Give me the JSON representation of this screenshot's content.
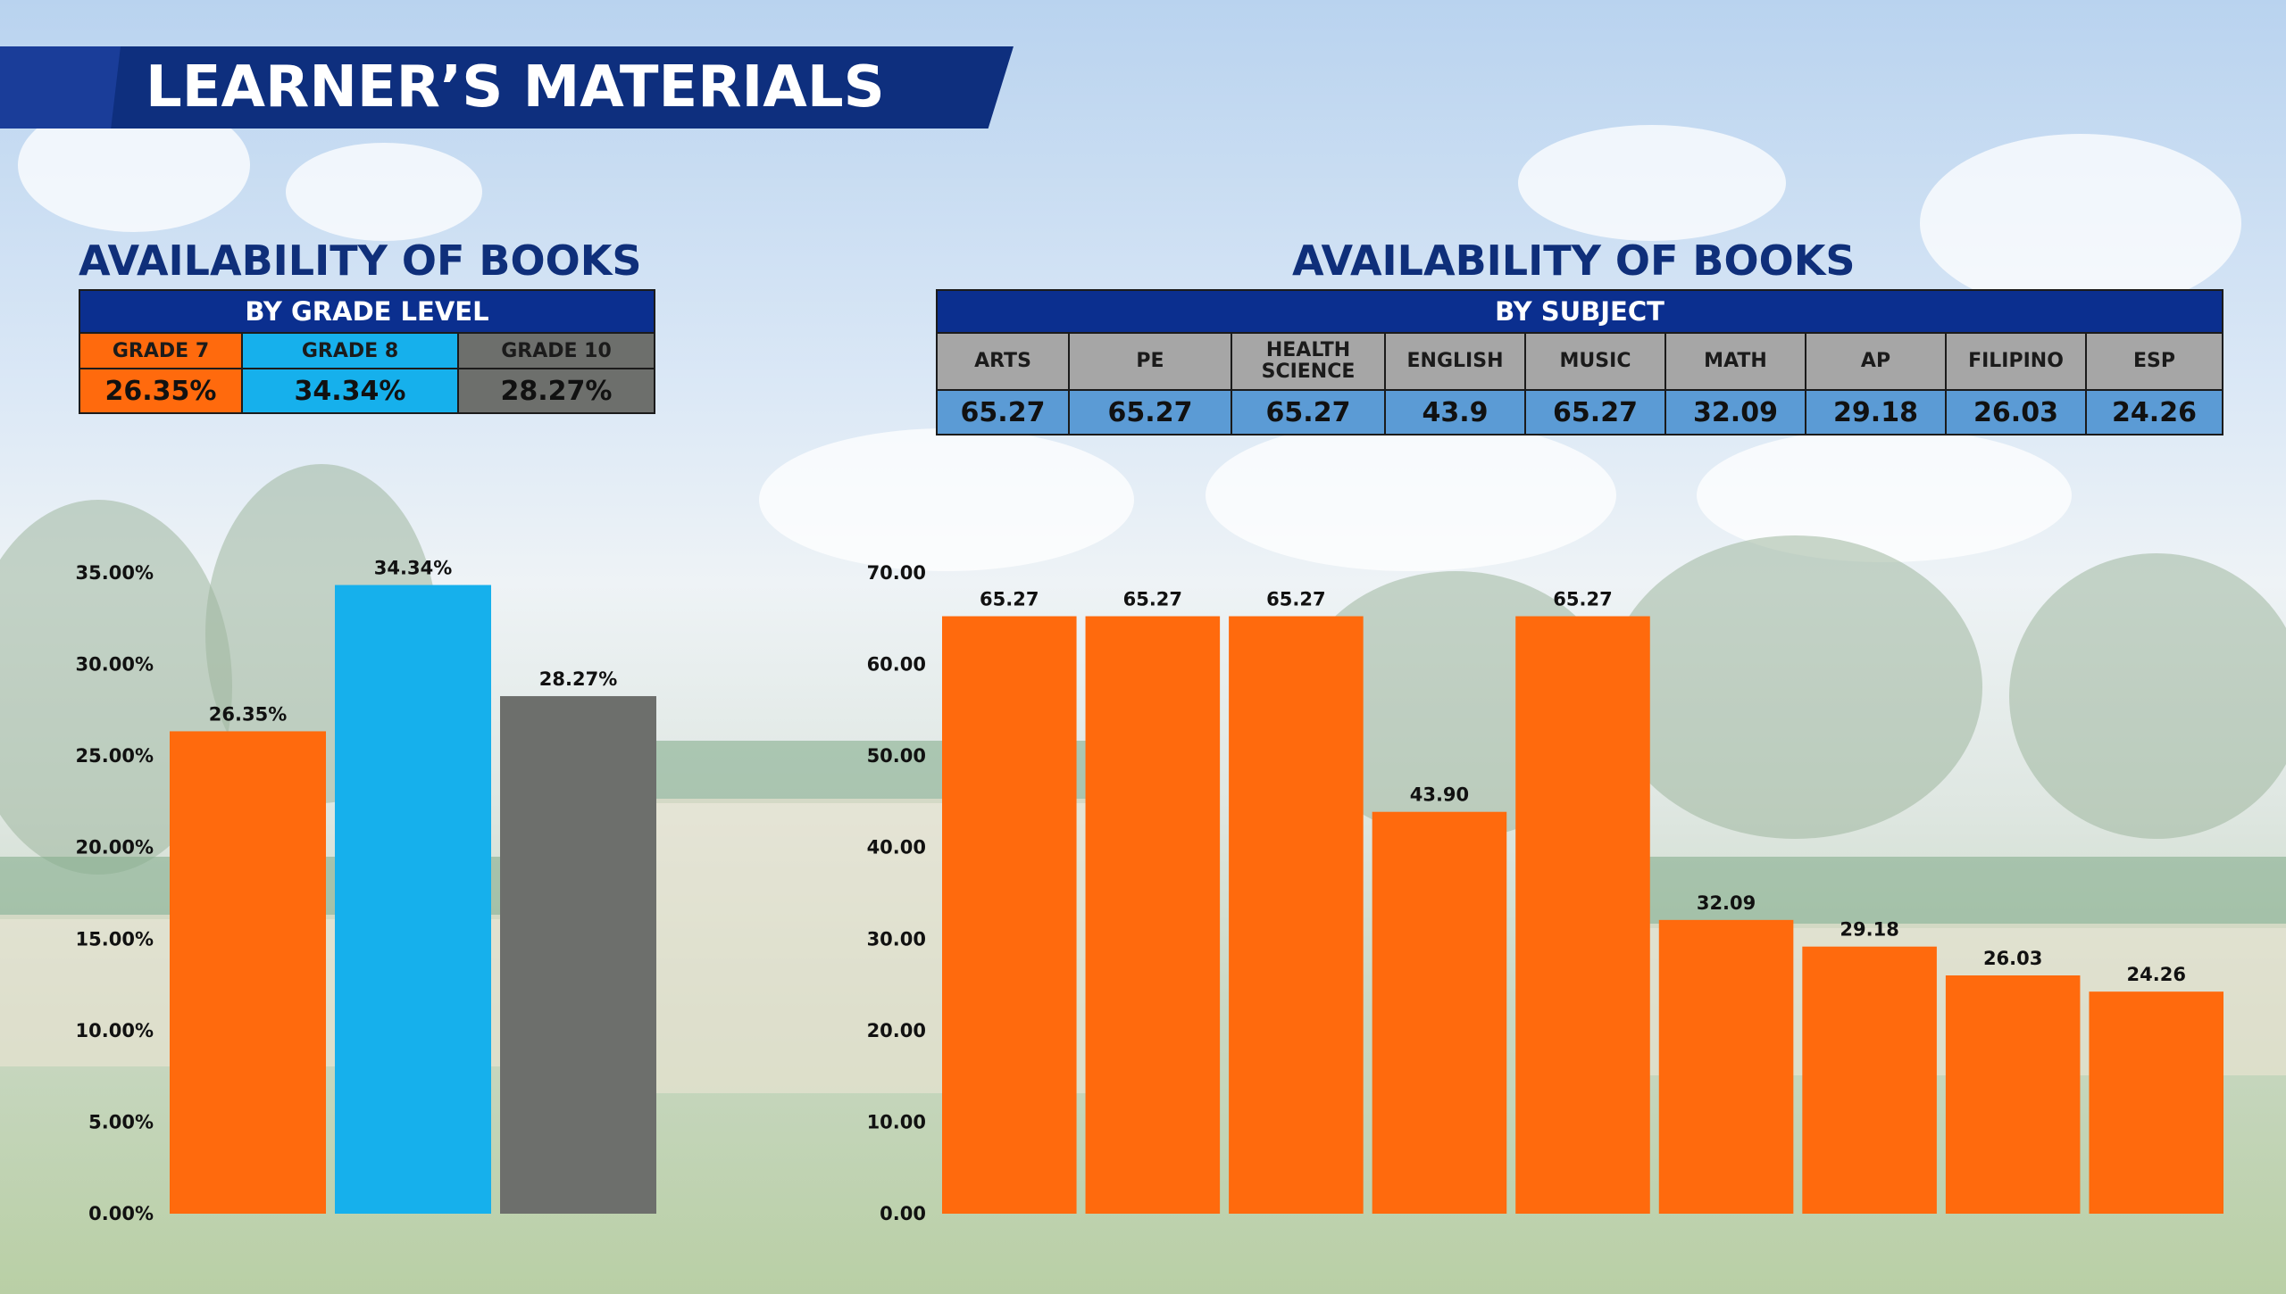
{
  "title": "LEARNER’S MATERIALS",
  "left": {
    "heading": "AVAILABILITY OF BOOKS",
    "subheading": "BY GRADE LEVEL",
    "table": {
      "labels": [
        "GRADE 7",
        "GRADE 8",
        "GRADE 10"
      ],
      "values": [
        "26.35%",
        "34.34%",
        "28.27%"
      ]
    }
  },
  "right": {
    "heading": "AVAILABILITY OF BOOKS",
    "subheading": "BY SUBJECT",
    "table": {
      "labels": [
        "ARTS",
        "PE",
        "HEALTH SCIENCE",
        "ENGLISH",
        "MUSIC",
        "MATH",
        "AP",
        "FILIPINO",
        "ESP"
      ],
      "values": [
        "65.27",
        "65.27",
        "65.27",
        "43.9",
        "65.27",
        "32.09",
        "29.18",
        "26.03",
        "24.26"
      ]
    }
  },
  "colors": {
    "orange": "#ff6a0d",
    "blue": "#16b0ec",
    "gray": "#6d6f6c",
    "navy": "#0e2f7e",
    "table_blue": "#5b9bd5",
    "table_gray": "#a6a6a6"
  },
  "chart_data": [
    {
      "type": "bar",
      "categories": [
        "GRADE 7",
        "GRADE 8",
        "GRADE 10"
      ],
      "values": [
        26.35,
        34.34,
        28.27
      ],
      "value_labels": [
        "26.35%",
        "34.34%",
        "28.27%"
      ],
      "colors": [
        "#ff6a0d",
        "#16b0ec",
        "#6d6f6c"
      ],
      "yticks": [
        "0.00%",
        "5.00%",
        "10.00%",
        "15.00%",
        "20.00%",
        "25.00%",
        "30.00%",
        "35.00%"
      ],
      "ylim": [
        0,
        35
      ],
      "grid": false,
      "title": "",
      "xlabel": "",
      "ylabel": ""
    },
    {
      "type": "bar",
      "categories": [
        "ARTS",
        "PE",
        "HEALTH SCIENCE",
        "ENGLISH",
        "MUSIC",
        "MATH",
        "AP",
        "FILIPINO",
        "ESP"
      ],
      "values": [
        65.27,
        65.27,
        65.27,
        43.9,
        65.27,
        32.09,
        29.18,
        26.03,
        24.26
      ],
      "value_labels": [
        "65.27",
        "65.27",
        "65.27",
        "43.90",
        "65.27",
        "32.09",
        "29.18",
        "26.03",
        "24.26"
      ],
      "colors": [
        "#ff6a0d"
      ],
      "yticks": [
        "0.00",
        "10.00",
        "20.00",
        "30.00",
        "40.00",
        "50.00",
        "60.00",
        "70.00"
      ],
      "ylim": [
        0,
        70
      ],
      "grid": false,
      "title": "",
      "xlabel": "",
      "ylabel": ""
    }
  ]
}
